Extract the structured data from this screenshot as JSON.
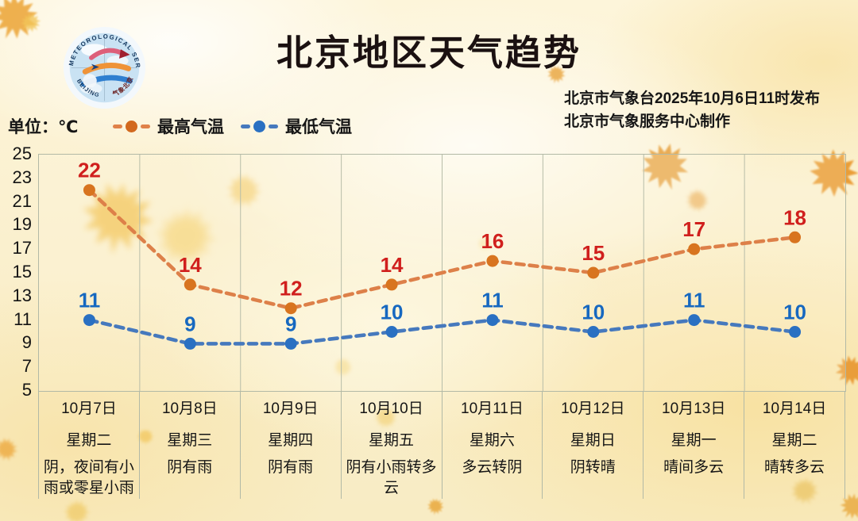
{
  "header": {
    "title": "北京地区天气趋势",
    "publish_line1": "北京市气象台2025年10月6日11时发布",
    "publish_line2": "北京市气象服务中心制作",
    "logo": {
      "arc_text_top": "METEOROLOGICAL SERVICE",
      "arc_text_bottom_left": "BEIJING",
      "arc_text_bottom_right": "气象北京"
    }
  },
  "legend": {
    "unit_label": "单位：℃",
    "items": [
      {
        "label": "最高气温",
        "dash_color": "#e0824a",
        "dot_color": "#d2691e"
      },
      {
        "label": "最低气温",
        "dash_color": "#4679bd",
        "dot_color": "#2a70c2"
      }
    ]
  },
  "chart_data": {
    "type": "line",
    "title": "北京地区天气趋势",
    "ylabel": "单位：℃",
    "x": [
      "10月7日",
      "10月8日",
      "10月9日",
      "10月10日",
      "10月11日",
      "10月12日",
      "10月13日",
      "10月14日"
    ],
    "weekdays": [
      "星期二",
      "星期三",
      "星期四",
      "星期五",
      "星期六",
      "星期日",
      "星期一",
      "星期二"
    ],
    "weather": [
      "阴，夜间有小雨或零星小雨",
      "阴有雨",
      "阴有雨",
      "阴有小雨转多云",
      "多云转阴",
      "阴转晴",
      "晴间多云",
      "晴转多云"
    ],
    "series": [
      {
        "name": "最高气温",
        "values": [
          22,
          14,
          12,
          14,
          16,
          15,
          17,
          18
        ],
        "line_color": "#dd8049",
        "dot_color": "#d8741f",
        "label_color": "#d01f1d"
      },
      {
        "name": "最低气温",
        "values": [
          11,
          9,
          9,
          10,
          11,
          10,
          11,
          10
        ],
        "line_color": "#4679bd",
        "dot_color": "#2a70c2",
        "label_color": "#1668c0"
      }
    ],
    "ylim": [
      5,
      25
    ],
    "yticks": [
      25,
      23,
      21,
      19,
      17,
      15,
      13,
      11,
      9,
      7,
      5
    ],
    "grid": "vertical-only",
    "legend_position": "top-left"
  }
}
